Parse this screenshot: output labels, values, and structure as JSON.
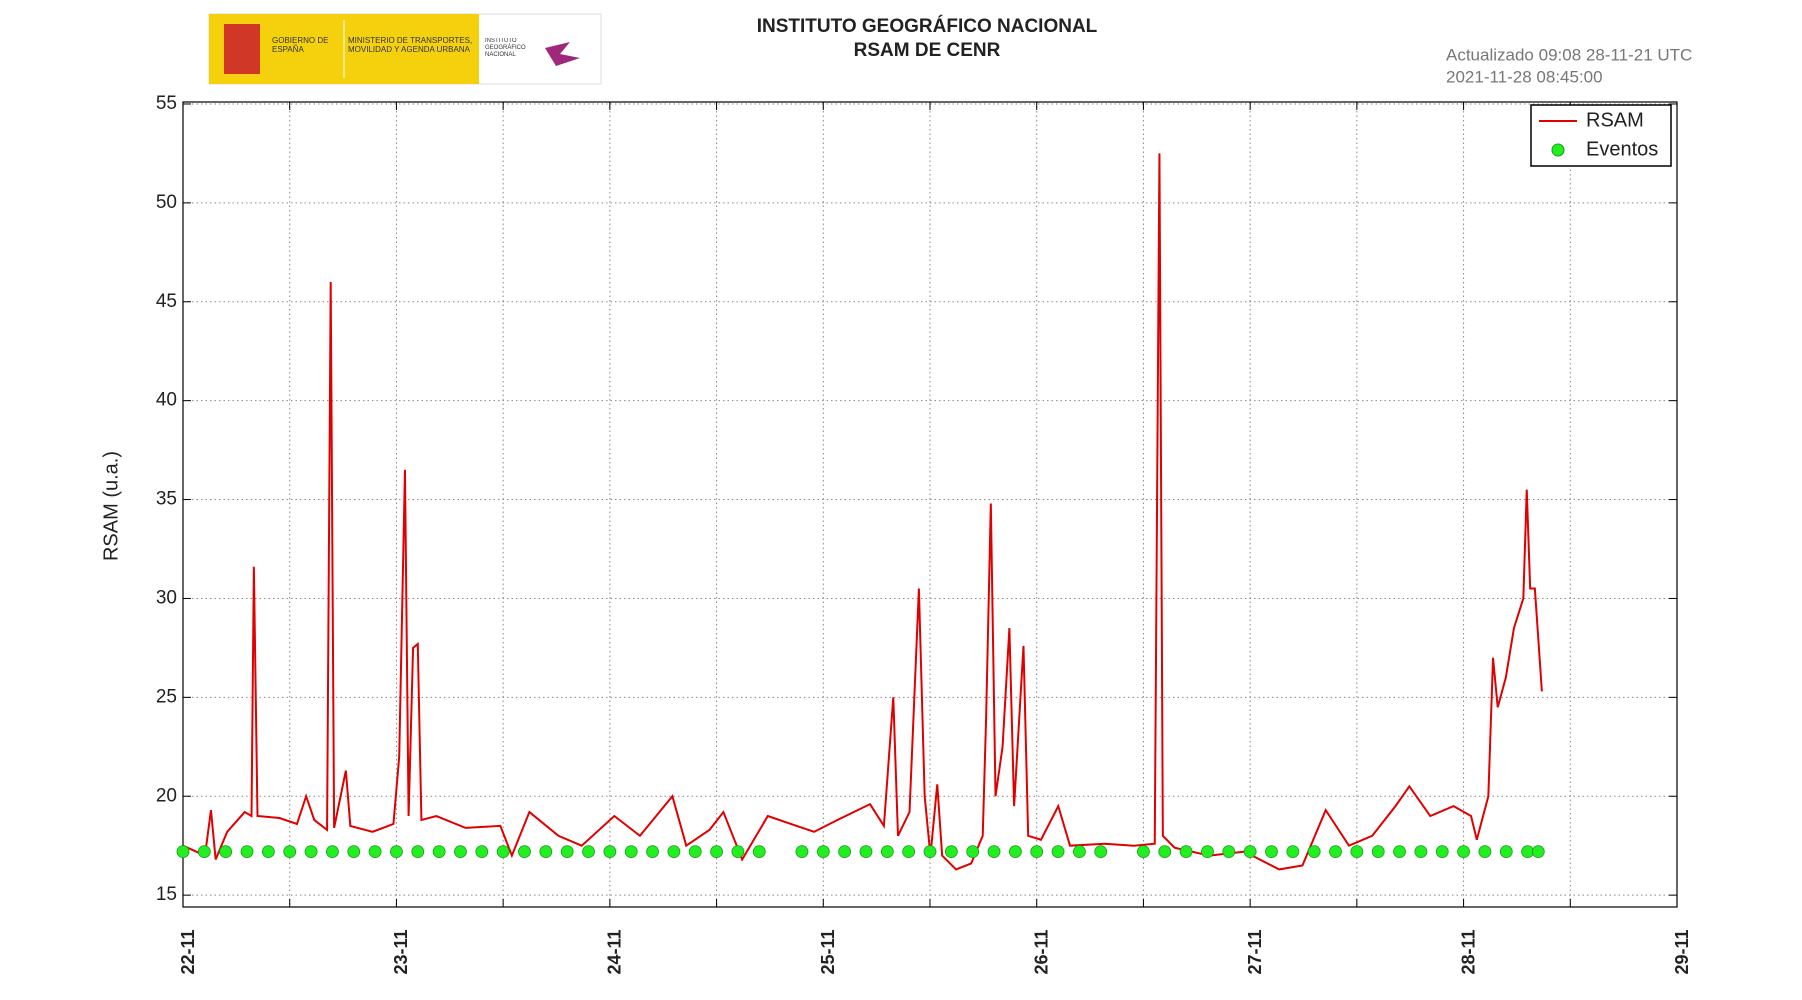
{
  "chart_data": {
    "type": "line",
    "title": "INSTITUTO GEOGRÁFICO NACIONAL",
    "subtitle": "RSAM DE CENR",
    "updated": "Actualizado 09:08 28-11-21 UTC",
    "timestamp": "2021-11-28 08:45:00",
    "logo_texts": [
      "GOBIERNO DE ESPAÑA",
      "MINISTERIO DE TRANSPORTES, MOVILIDAD Y AGENDA URBANA",
      "INSTITUTO GEOGRÁFICO NACIONAL"
    ],
    "ylabel": "RSAM (u.a.)",
    "xlim": [
      22,
      29
    ],
    "ylim": [
      14.4,
      55.1
    ],
    "yticks": [
      15,
      20,
      25,
      30,
      35,
      40,
      45,
      50,
      55
    ],
    "xticks": [
      {
        "value": 22,
        "label": "22-11"
      },
      {
        "value": 23,
        "label": "23-11"
      },
      {
        "value": 24,
        "label": "24-11"
      },
      {
        "value": 25,
        "label": "25-11"
      },
      {
        "value": 26,
        "label": "26-11"
      },
      {
        "value": 27,
        "label": "27-11"
      },
      {
        "value": 28,
        "label": "28-11"
      },
      {
        "value": 29,
        "label": "29-11"
      }
    ],
    "grid": true,
    "legend": "upper right",
    "series": [
      {
        "name": "RSAM",
        "type": "line",
        "color": "#e00000",
        "x": [
          22.0,
          22.103,
          22.131,
          22.153,
          22.207,
          22.289,
          22.321,
          22.332,
          22.349,
          22.452,
          22.534,
          22.577,
          22.615,
          22.675,
          22.692,
          22.708,
          22.763,
          22.784,
          22.888,
          22.986,
          23.013,
          23.04,
          23.057,
          23.078,
          23.1,
          23.117,
          23.187,
          23.324,
          23.487,
          23.541,
          23.623,
          23.759,
          23.868,
          24.021,
          24.141,
          24.293,
          24.358,
          24.467,
          24.532,
          24.62,
          24.74,
          24.848,
          24.957,
          25.066,
          25.219,
          25.284,
          25.328,
          25.35,
          25.404,
          25.448,
          25.475,
          25.502,
          25.534,
          25.557,
          25.622,
          25.693,
          25.747,
          25.763,
          25.785,
          25.807,
          25.84,
          25.872,
          25.894,
          25.938,
          25.96,
          26.02,
          26.101,
          26.156,
          26.319,
          26.455,
          26.553,
          26.575,
          26.591,
          26.646,
          26.809,
          26.973,
          27.136,
          27.245,
          27.354,
          27.463,
          27.572,
          27.681,
          27.746,
          27.844,
          27.953,
          28.035,
          28.062,
          28.116,
          28.138,
          28.16,
          28.198,
          28.236,
          28.28,
          28.296,
          28.312,
          28.334,
          28.367
        ],
        "values": [
          17.5,
          17.0,
          19.3,
          16.8,
          18.2,
          19.2,
          19.0,
          31.6,
          19.0,
          18.9,
          18.6,
          20.0,
          18.8,
          18.3,
          46.0,
          18.4,
          21.3,
          18.5,
          18.2,
          18.6,
          22.0,
          36.5,
          19.0,
          27.5,
          27.7,
          18.8,
          19.0,
          18.4,
          18.5,
          17.0,
          19.2,
          18.0,
          17.5,
          19.0,
          18.0,
          20.0,
          17.5,
          18.3,
          19.2,
          16.8,
          19.0,
          18.6,
          18.2,
          18.8,
          19.6,
          18.5,
          25.0,
          18.0,
          19.2,
          30.5,
          20.0,
          17.0,
          20.6,
          17.0,
          16.3,
          16.6,
          18.0,
          24.0,
          34.8,
          20.0,
          22.5,
          28.5,
          19.5,
          27.6,
          18.0,
          17.8,
          19.5,
          17.5,
          17.6,
          17.5,
          17.6,
          52.5,
          18.0,
          17.4,
          17.0,
          17.2,
          16.3,
          16.5,
          19.3,
          17.5,
          18.0,
          19.5,
          20.5,
          19.0,
          19.5,
          19.0,
          17.8,
          20.0,
          27.0,
          24.5,
          26.0,
          28.5,
          30.0,
          35.5,
          30.5,
          30.5,
          25.3
        ]
      },
      {
        "name": "Eventos",
        "type": "scatter",
        "color": "#22ee22",
        "x": [
          22.0,
          22.1,
          22.2,
          22.3,
          22.4,
          22.5,
          22.6,
          22.7,
          22.8,
          22.9,
          23.0,
          23.1,
          23.2,
          23.3,
          23.4,
          23.5,
          23.6,
          23.7,
          23.8,
          23.9,
          24.0,
          24.1,
          24.2,
          24.3,
          24.4,
          24.5,
          24.6,
          24.7,
          24.9,
          25.0,
          25.1,
          25.2,
          25.3,
          25.4,
          25.5,
          25.6,
          25.7,
          25.8,
          25.9,
          26.0,
          26.1,
          26.2,
          26.3,
          26.5,
          26.6,
          26.7,
          26.8,
          26.9,
          27.0,
          27.1,
          27.2,
          27.3,
          27.4,
          27.5,
          27.6,
          27.7,
          27.8,
          27.9,
          28.0,
          28.1,
          28.2,
          28.3,
          28.35
        ],
        "values": [
          17.2,
          17.2,
          17.2,
          17.2,
          17.2,
          17.2,
          17.2,
          17.2,
          17.2,
          17.2,
          17.2,
          17.2,
          17.2,
          17.2,
          17.2,
          17.2,
          17.2,
          17.2,
          17.2,
          17.2,
          17.2,
          17.2,
          17.2,
          17.2,
          17.2,
          17.2,
          17.2,
          17.2,
          17.2,
          17.2,
          17.2,
          17.2,
          17.2,
          17.2,
          17.2,
          17.2,
          17.2,
          17.2,
          17.2,
          17.2,
          17.2,
          17.2,
          17.2,
          17.2,
          17.2,
          17.2,
          17.2,
          17.2,
          17.2,
          17.2,
          17.2,
          17.2,
          17.2,
          17.2,
          17.2,
          17.2,
          17.2,
          17.2,
          17.2,
          17.2,
          17.2,
          17.2,
          17.2
        ]
      }
    ]
  }
}
